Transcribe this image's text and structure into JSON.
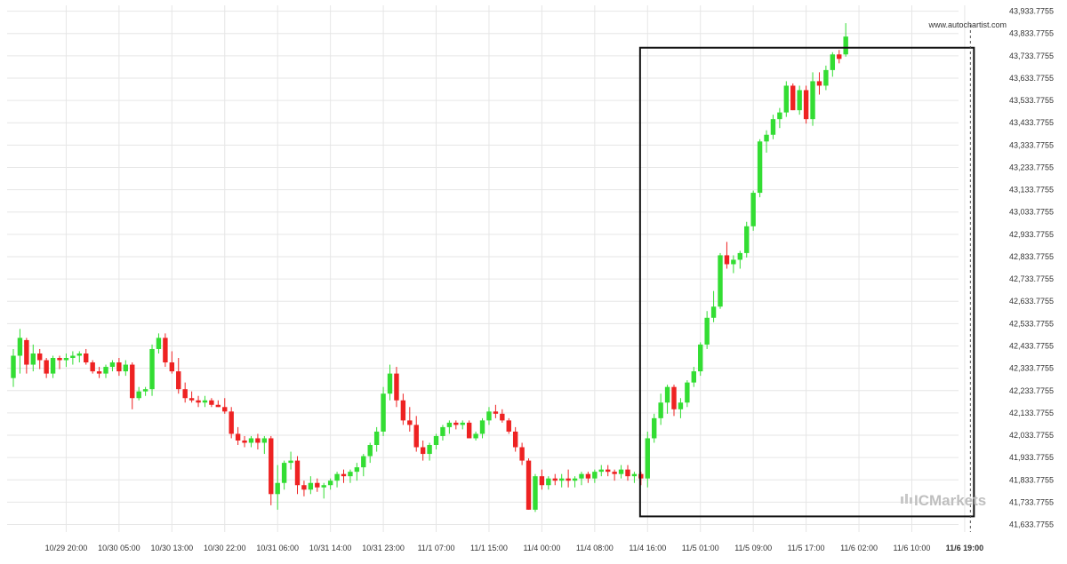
{
  "chart_data": {
    "type": "candlestick",
    "y_ticks": [
      "43,933.7755",
      "43,833.7755",
      "43,733.7755",
      "43,633.7755",
      "43,533.7755",
      "43,433.7755",
      "43,333.7755",
      "43,233.7755",
      "43,133.7755",
      "43,033.7755",
      "42,933.7755",
      "42,833.7755",
      "42,733.7755",
      "42,633.7755",
      "42,533.7755",
      "42,433.7755",
      "42,333.7755",
      "42,233.7755",
      "42,133.7755",
      "42,033.7755",
      "41,933.7755",
      "41,833.7755",
      "41,733.7755",
      "41,633.7755"
    ],
    "y_tick_values": [
      43933.7755,
      43833.7755,
      43733.7755,
      43633.7755,
      43533.7755,
      43433.7755,
      43333.7755,
      43233.7755,
      43133.7755,
      43033.7755,
      42933.7755,
      42833.7755,
      42733.7755,
      42633.7755,
      42533.7755,
      42433.7755,
      42333.7755,
      42233.7755,
      42133.7755,
      42033.7755,
      41933.7755,
      41833.7755,
      41733.7755,
      41633.7755
    ],
    "ylim": [
      41600,
      43960
    ],
    "x_tick_labels": [
      "10/29 20:00",
      "10/30 05:00",
      "10/30 13:00",
      "10/30 22:00",
      "10/31 06:00",
      "10/31 14:00",
      "10/31 23:00",
      "11/1 07:00",
      "11/1 15:00",
      "11/4 00:00",
      "11/4 08:00",
      "11/4 16:00",
      "11/5 01:00",
      "11/5 09:00",
      "11/5 17:00",
      "11/6 02:00",
      "11/6 10:00",
      "11/6 19:00"
    ],
    "x_tick_index": [
      8,
      16,
      24,
      32,
      40,
      48,
      56,
      64,
      72,
      80,
      88,
      96,
      104,
      112,
      120,
      128,
      136,
      144
    ],
    "x_tick_bold_index": 17,
    "pattern_box": {
      "start_index": 95,
      "end_index": 145,
      "top": 43770,
      "bottom": 41670
    },
    "dashed_line_index": 145,
    "candles": [
      [
        42290,
        42420,
        42250,
        42390
      ],
      [
        42390,
        42510,
        42310,
        42470
      ],
      [
        42460,
        42470,
        42310,
        42350
      ],
      [
        42350,
        42440,
        42320,
        42400
      ],
      [
        42400,
        42420,
        42330,
        42370
      ],
      [
        42370,
        42380,
        42290,
        42310
      ],
      [
        42310,
        42390,
        42290,
        42380
      ],
      [
        42380,
        42390,
        42330,
        42370
      ],
      [
        42370,
        42400,
        42340,
        42380
      ],
      [
        42380,
        42410,
        42350,
        42390
      ],
      [
        42390,
        42410,
        42360,
        42400
      ],
      [
        42400,
        42420,
        42350,
        42360
      ],
      [
        42360,
        42370,
        42310,
        42320
      ],
      [
        42320,
        42340,
        42290,
        42310
      ],
      [
        42310,
        42350,
        42290,
        42340
      ],
      [
        42340,
        42370,
        42320,
        42360
      ],
      [
        42360,
        42380,
        42300,
        42320
      ],
      [
        42320,
        42370,
        42300,
        42350
      ],
      [
        42350,
        42360,
        42150,
        42200
      ],
      [
        42200,
        42250,
        42190,
        42230
      ],
      [
        42230,
        42250,
        42210,
        42240
      ],
      [
        42240,
        42440,
        42210,
        42420
      ],
      [
        42420,
        42490,
        42400,
        42470
      ],
      [
        42470,
        42490,
        42340,
        42360
      ],
      [
        42360,
        42410,
        42310,
        42320
      ],
      [
        42320,
        42380,
        42220,
        42240
      ],
      [
        42240,
        42270,
        42180,
        42200
      ],
      [
        42200,
        42230,
        42180,
        42190
      ],
      [
        42190,
        42210,
        42160,
        42180
      ],
      [
        42180,
        42210,
        42160,
        42190
      ],
      [
        42190,
        42200,
        42160,
        42170
      ],
      [
        42170,
        42190,
        42160,
        42160
      ],
      [
        42160,
        42200,
        42130,
        42140
      ],
      [
        42140,
        42160,
        42020,
        42040
      ],
      [
        42040,
        42070,
        41990,
        42010
      ],
      [
        42010,
        42030,
        41980,
        42000
      ],
      [
        42000,
        42030,
        41980,
        42020
      ],
      [
        42020,
        42040,
        41970,
        42000
      ],
      [
        42000,
        42030,
        41950,
        42020
      ],
      [
        42020,
        42030,
        41720,
        41770
      ],
      [
        41770,
        41900,
        41700,
        41820
      ],
      [
        41820,
        41920,
        41790,
        41910
      ],
      [
        41910,
        41960,
        41880,
        41920
      ],
      [
        41920,
        41940,
        41770,
        41810
      ],
      [
        41810,
        41830,
        41760,
        41790
      ],
      [
        41790,
        41850,
        41770,
        41820
      ],
      [
        41820,
        41840,
        41780,
        41800
      ],
      [
        41800,
        41820,
        41750,
        41810
      ],
      [
        41810,
        41840,
        41790,
        41830
      ],
      [
        41830,
        41870,
        41800,
        41860
      ],
      [
        41860,
        41880,
        41820,
        41850
      ],
      [
        41850,
        41880,
        41820,
        41870
      ],
      [
        41870,
        41910,
        41830,
        41890
      ],
      [
        41890,
        41950,
        41850,
        41940
      ],
      [
        41940,
        42000,
        41910,
        41990
      ],
      [
        41990,
        42070,
        41960,
        42050
      ],
      [
        42050,
        42250,
        42030,
        42220
      ],
      [
        42220,
        42350,
        42190,
        42310
      ],
      [
        42310,
        42340,
        42160,
        42190
      ],
      [
        42190,
        42220,
        42080,
        42100
      ],
      [
        42100,
        42160,
        42050,
        42080
      ],
      [
        42080,
        42120,
        41960,
        41980
      ],
      [
        41980,
        42010,
        41920,
        41950
      ],
      [
        41950,
        42000,
        41920,
        41990
      ],
      [
        41990,
        42040,
        41970,
        42030
      ],
      [
        42030,
        42080,
        42010,
        42070
      ],
      [
        42070,
        42100,
        42040,
        42090
      ],
      [
        42090,
        42100,
        42060,
        42080
      ],
      [
        42080,
        42100,
        42060,
        42090
      ],
      [
        42090,
        42100,
        42020,
        42020
      ],
      [
        42020,
        42050,
        42010,
        42040
      ],
      [
        42040,
        42110,
        42020,
        42100
      ],
      [
        42100,
        42160,
        42080,
        42140
      ],
      [
        42140,
        42170,
        42110,
        42130
      ],
      [
        42130,
        42150,
        42090,
        42100
      ],
      [
        42100,
        42110,
        42040,
        42050
      ],
      [
        42050,
        42070,
        41960,
        41980
      ],
      [
        41980,
        42000,
        41900,
        41920
      ],
      [
        41920,
        41930,
        41700,
        41700
      ],
      [
        41700,
        41860,
        41690,
        41850
      ],
      [
        41850,
        41880,
        41790,
        41810
      ],
      [
        41810,
        41850,
        41790,
        41840
      ],
      [
        41840,
        41860,
        41810,
        41830
      ],
      [
        41830,
        41860,
        41800,
        41840
      ],
      [
        41840,
        41880,
        41800,
        41830
      ],
      [
        41830,
        41850,
        41800,
        41840
      ],
      [
        41840,
        41870,
        41810,
        41860
      ],
      [
        41860,
        41870,
        41820,
        41840
      ],
      [
        41840,
        41880,
        41820,
        41870
      ],
      [
        41870,
        41900,
        41850,
        41880
      ],
      [
        41880,
        41900,
        41850,
        41870
      ],
      [
        41870,
        41880,
        41830,
        41860
      ],
      [
        41860,
        41900,
        41840,
        41880
      ],
      [
        41880,
        41900,
        41830,
        41850
      ],
      [
        41850,
        41870,
        41820,
        41860
      ],
      [
        41860,
        41870,
        41810,
        41840
      ],
      [
        41840,
        42050,
        41800,
        42020
      ],
      [
        42020,
        42130,
        42000,
        42110
      ],
      [
        42110,
        42220,
        42080,
        42180
      ],
      [
        42180,
        42260,
        42130,
        42250
      ],
      [
        42250,
        42260,
        42120,
        42150
      ],
      [
        42150,
        42200,
        42110,
        42180
      ],
      [
        42180,
        42280,
        42160,
        42270
      ],
      [
        42270,
        42340,
        42250,
        42320
      ],
      [
        42320,
        42450,
        42300,
        42440
      ],
      [
        42440,
        42590,
        42420,
        42560
      ],
      [
        42560,
        42680,
        42540,
        42610
      ],
      [
        42610,
        42850,
        42600,
        42840
      ],
      [
        42840,
        42900,
        42780,
        42800
      ],
      [
        42800,
        42840,
        42760,
        42820
      ],
      [
        42820,
        42860,
        42780,
        42850
      ],
      [
        42850,
        42990,
        42830,
        42970
      ],
      [
        42970,
        43130,
        42950,
        43120
      ],
      [
        43120,
        43360,
        43100,
        43350
      ],
      [
        43350,
        43400,
        43300,
        43380
      ],
      [
        43380,
        43470,
        43360,
        43450
      ],
      [
        43450,
        43500,
        43410,
        43480
      ],
      [
        43480,
        43620,
        43460,
        43600
      ],
      [
        43600,
        43610,
        43490,
        43490
      ],
      [
        43490,
        43600,
        43470,
        43580
      ],
      [
        43580,
        43600,
        43430,
        43450
      ],
      [
        43450,
        43660,
        43420,
        43620
      ],
      [
        43620,
        43660,
        43560,
        43600
      ],
      [
        43600,
        43690,
        43580,
        43670
      ],
      [
        43670,
        43750,
        43640,
        43740
      ],
      [
        43740,
        43760,
        43700,
        43720
      ],
      [
        43740,
        43880,
        43730,
        43820
      ]
    ],
    "xlabel": "",
    "ylabel": "",
    "grid": true
  },
  "watermark_url": "www.autochartist.com",
  "brand_logo_text": "ICMarkets",
  "colors": {
    "up": "#33dd33",
    "down": "#ee2222",
    "grid": "#e6e6e6",
    "box": "#111111",
    "axis_text": "#333333",
    "logo": "#bfbfbf"
  }
}
